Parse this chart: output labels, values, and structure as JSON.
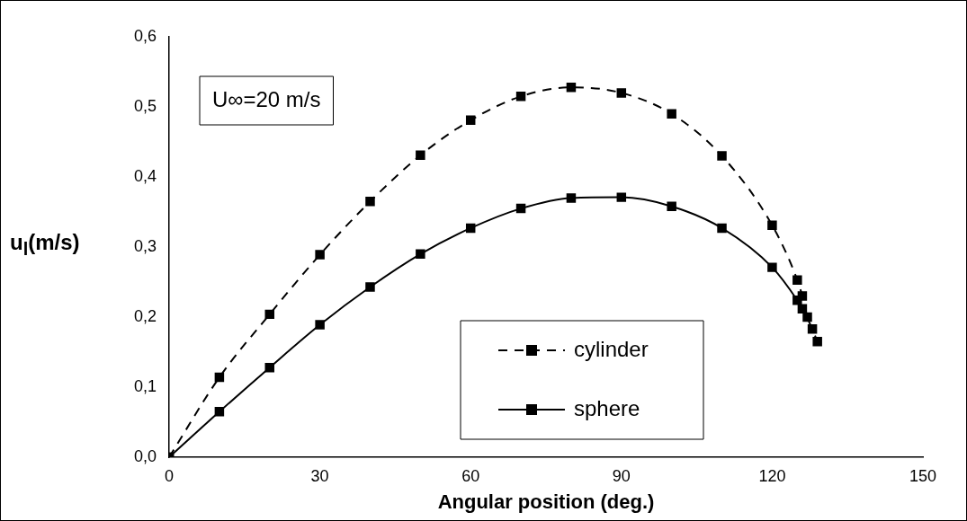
{
  "chart_data": {
    "type": "line",
    "xlabel": "Angular position (deg.)",
    "ylabel": "u$_{l}$(m/s)",
    "annotations": [
      "U∞=20 m/s"
    ],
    "xlim": [
      0,
      150
    ],
    "xticks": [
      0,
      30,
      60,
      90,
      120,
      150
    ],
    "ylim": [
      0,
      0.6
    ],
    "yticks": [
      {
        "value": 0,
        "label": "0,0"
      },
      {
        "value": 0.1,
        "label": "0,1"
      },
      {
        "value": 0.2,
        "label": "0,2"
      },
      {
        "value": 0.3,
        "label": "0,3"
      },
      {
        "value": 0.4,
        "label": "0,4"
      },
      {
        "value": 0.5,
        "label": "0,5"
      },
      {
        "value": 0.6,
        "label": "0,6"
      }
    ],
    "grid": false,
    "legend": "bottom",
    "marker": "square",
    "series": [
      {
        "name": "cylinder",
        "color": "#000000",
        "line_style": "dashed",
        "x": [
          0,
          10,
          20,
          30,
          40,
          50,
          60,
          70,
          80,
          90,
          100,
          110,
          120,
          125,
          126,
          127,
          128,
          129
        ],
        "values": [
          0,
          0.114,
          0.204,
          0.289,
          0.365,
          0.431,
          0.481,
          0.515,
          0.528,
          0.52,
          0.49,
          0.43,
          0.331,
          0.253,
          0.23,
          0.2,
          0.183,
          0.165
        ]
      },
      {
        "name": "sphere",
        "color": "#000000",
        "line_style": "solid",
        "x": [
          0,
          10,
          20,
          30,
          40,
          50,
          60,
          70,
          80,
          90,
          100,
          110,
          120,
          125,
          126
        ],
        "values": [
          0,
          0.065,
          0.128,
          0.189,
          0.243,
          0.29,
          0.327,
          0.355,
          0.37,
          0.371,
          0.358,
          0.327,
          0.271,
          0.224,
          0.212
        ]
      }
    ]
  }
}
